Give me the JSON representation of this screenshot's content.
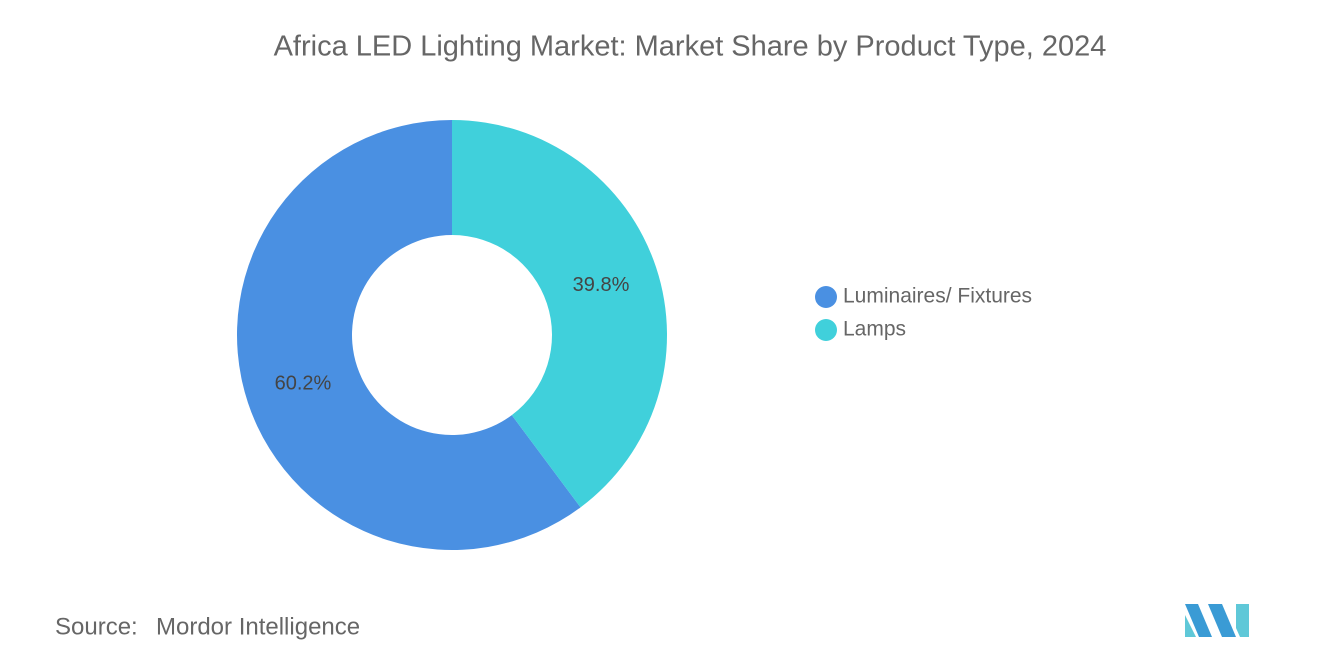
{
  "chart_data": {
    "type": "donut",
    "title": "Africa LED Lighting Market: Market Share by Product Type, 2024",
    "categories": [
      "Luminaires/ Fixtures",
      "Lamps"
    ],
    "values": [
      60.2,
      39.8
    ],
    "value_labels": [
      "60.2%",
      "39.8%"
    ],
    "colors": [
      "#4a90e2",
      "#40d0db"
    ],
    "legend": "right"
  },
  "footer": {
    "source_label": "Source:",
    "source": "Mordor Intelligence"
  }
}
